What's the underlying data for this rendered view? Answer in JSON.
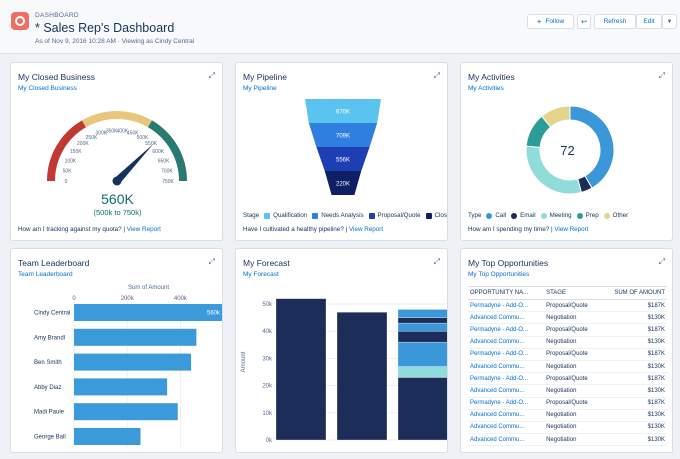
{
  "header": {
    "eyebrow": "DASHBOARD",
    "title": "* Sales Rep's Dashboard",
    "subtitle": "As of Nov 9, 2016 10:28 AM · Viewing as Cindy Central",
    "follow_label": "Follow",
    "refresh_label": "Refresh",
    "edit_label": "Edit"
  },
  "closed_business": {
    "title": "My Closed Business",
    "subtitle": "My Closed Business",
    "value_label": "560K",
    "range_label": "(500k to 750k)",
    "footer_text": "How am I tracking against my quota?",
    "footer_link": "View Report"
  },
  "pipeline": {
    "title": "My Pipeline",
    "subtitle": "My Pipeline",
    "legend_title": "Stage",
    "footer_text": "Have I cultivated a healthy pipeline?",
    "footer_link": "View Report"
  },
  "activities": {
    "title": "My Activities",
    "subtitle": "My Activities",
    "center_value": "72",
    "legend_title": "Type",
    "footer_text": "How am I spending my time?",
    "footer_link": "View Report"
  },
  "leaderboard": {
    "title": "Team Leaderboard",
    "subtitle": "Team Leaderboard"
  },
  "forecast": {
    "title": "My Forecast",
    "subtitle": "My Forecast"
  },
  "opportunities": {
    "title": "My Top Opportunities",
    "subtitle": "My Top Opportunities",
    "columns": [
      "OPPORTUNITY NA...",
      "STAGE",
      "SUM OF AMOUNT"
    ],
    "rows": [
      [
        "Permadyne - Add-O...",
        "Proposal/Quote",
        "$187K"
      ],
      [
        "Advanced Commu...",
        "Negotiation",
        "$130K"
      ],
      [
        "Permadyne - Add-O...",
        "Proposal/Quote",
        "$187K"
      ],
      [
        "Advanced Commu...",
        "Negotiation",
        "$130K"
      ],
      [
        "Permadyne - Add-O...",
        "Proposal/Quote",
        "$187K"
      ],
      [
        "Advanced Commu...",
        "Negotiation",
        "$130K"
      ],
      [
        "Permadyne - Add-O...",
        "Proposal/Quote",
        "$187K"
      ],
      [
        "Advanced Commu...",
        "Negotiation",
        "$130K"
      ],
      [
        "Permadyne - Add-O...",
        "Proposal/Quote",
        "$187K"
      ],
      [
        "Advanced Commu...",
        "Negotiation",
        "$130K"
      ],
      [
        "Advanced Commu...",
        "Negotiation",
        "$130K"
      ],
      [
        "Advanced Commu...",
        "Negotiation",
        "$130K"
      ]
    ]
  },
  "colors": {
    "brand": "#0070d2",
    "gauge_red": "#c23934",
    "gauge_yellow": "#e8c77c",
    "gauge_teal": "#2b7a72",
    "needle": "#16325c",
    "bar_blue": "#3b9ad9",
    "dark_navy": "#1c2d5a"
  },
  "chart_data": [
    {
      "type": "gauge",
      "title": "My Closed Business",
      "value": 560000,
      "min": 0,
      "max": 750000,
      "ticks": [
        "0",
        "50K",
        "100K",
        "150K",
        "200K",
        "250K",
        "300K",
        "350K",
        "400K",
        "450K",
        "500K",
        "550K",
        "600K",
        "650K",
        "700K",
        "750K"
      ],
      "bands": [
        {
          "from": 0,
          "to": 250000,
          "color": "#c23934"
        },
        {
          "from": 250000,
          "to": 500000,
          "color": "#e8c77c"
        },
        {
          "from": 500000,
          "to": 750000,
          "color": "#2b7a72"
        }
      ]
    },
    {
      "type": "funnel",
      "title": "My Pipeline",
      "categories": [
        "Qualification",
        "Needs Analysis",
        "Proposal/Quote",
        "Closed Won"
      ],
      "values": [
        670000,
        709000,
        556000,
        220000
      ],
      "labels": [
        "670K",
        "709K",
        "556K",
        "220K"
      ],
      "colors": [
        "#5bc3f0",
        "#2f7fe0",
        "#1e3fb4",
        "#0f1f66"
      ]
    },
    {
      "type": "donut",
      "title": "My Activities",
      "total": 72,
      "categories": [
        "Call",
        "Email",
        "Meeting",
        "Prep",
        "Other"
      ],
      "values": [
        30,
        3,
        22,
        9,
        8
      ],
      "colors": [
        "#3b97d9",
        "#1c2d5a",
        "#8fdcdb",
        "#2a9d97",
        "#e4d48c"
      ]
    },
    {
      "type": "bar",
      "orientation": "horizontal",
      "title": "Team Leaderboard",
      "xlabel": "Sum of Amount",
      "xticks": [
        "0",
        "200k",
        "400k"
      ],
      "categories": [
        "Cindy Central",
        "Amy Brandl",
        "Ben Smith",
        "Abby Diaz",
        "Madi Paule",
        "George Ball"
      ],
      "values": [
        560000,
        460000,
        440000,
        350000,
        390000,
        250000
      ],
      "data_labels": [
        "560k",
        "",
        "",
        "",
        "",
        ""
      ],
      "xlim": [
        0,
        560000
      ]
    },
    {
      "type": "bar",
      "stacked": true,
      "title": "My Forecast",
      "ylabel": "Amount",
      "yticks": [
        "0k",
        "10k",
        "20k",
        "30k",
        "40k",
        "50k"
      ],
      "ylim": [
        0,
        57000
      ],
      "columns": [
        {
          "segments": [
            {
              "value": 52000,
              "color": "#1c2d5a"
            }
          ]
        },
        {
          "segments": [
            {
              "value": 47000,
              "color": "#1c2d5a"
            }
          ]
        },
        {
          "segments": [
            {
              "value": 23000,
              "color": "#1c2d5a"
            },
            {
              "value": 4000,
              "color": "#8fdcdb"
            },
            {
              "value": 9000,
              "color": "#3b97d9"
            },
            {
              "value": 4000,
              "color": "#1c2d5a"
            },
            {
              "value": 3000,
              "color": "#3b97d9"
            },
            {
              "value": 2000,
              "color": "#1c2d5a"
            },
            {
              "value": 3000,
              "color": "#3b97d9"
            }
          ]
        }
      ]
    }
  ]
}
